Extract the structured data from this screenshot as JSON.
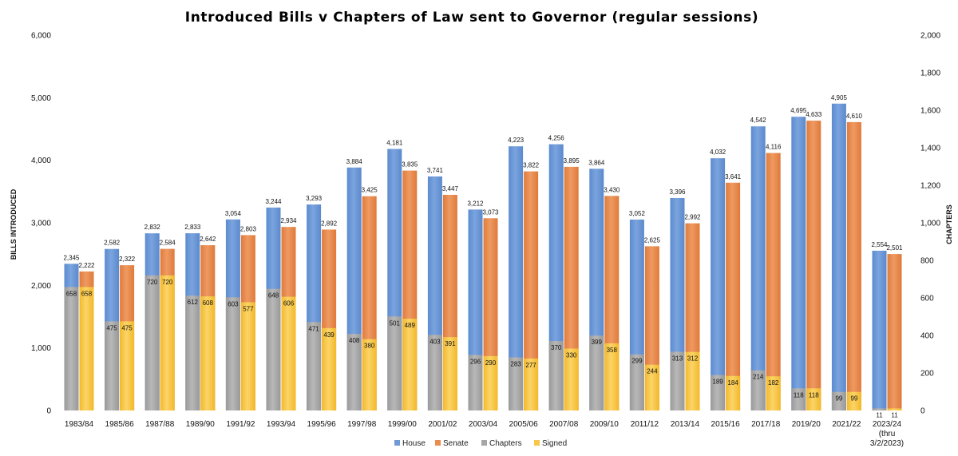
{
  "chart_data": {
    "type": "bar",
    "title": "Introduced Bills v Chapters of Law sent to Governor (regular sessions)",
    "ylabel": "BILLS INTRODUCED",
    "y2label": "CHAPTERS",
    "ylim": [
      0,
      6000
    ],
    "y2lim": [
      0,
      2000
    ],
    "yticks": [
      "0",
      "1,000",
      "2,000",
      "3,000",
      "4,000",
      "5,000",
      "6,000"
    ],
    "y2ticks": [
      "0",
      "200",
      "400",
      "600",
      "800",
      "1,000",
      "1,200",
      "1,400",
      "1,600",
      "1,800",
      "2,000"
    ],
    "grid": false,
    "legend_position": "bottom",
    "categories": [
      [
        "1983/84"
      ],
      [
        "1985/86"
      ],
      [
        "1987/88"
      ],
      [
        "1989/90"
      ],
      [
        "1991/92"
      ],
      [
        "1993/94"
      ],
      [
        "1995/96"
      ],
      [
        "1997/98"
      ],
      [
        "1999/00"
      ],
      [
        "2001/02"
      ],
      [
        "2003/04"
      ],
      [
        "2005/06"
      ],
      [
        "2007/08"
      ],
      [
        "2009/10"
      ],
      [
        "2011/12"
      ],
      [
        "2013/14"
      ],
      [
        "2015/16"
      ],
      [
        "2017/18"
      ],
      [
        "2019/20"
      ],
      [
        "2021/22"
      ],
      [
        "2023/24",
        "(thru",
        "3/2/2023)"
      ]
    ],
    "series": [
      {
        "name": "House",
        "axis": "left",
        "color": "#6f9ad6",
        "values": [
          2345,
          2582,
          2832,
          2833,
          3054,
          3244,
          3293,
          3884,
          4181,
          3741,
          3212,
          4223,
          4256,
          3864,
          3052,
          3396,
          4032,
          4542,
          4695,
          4905,
          2554
        ],
        "labels": [
          "2,345",
          "2,582",
          "2,832",
          "2,833",
          "3,054",
          "3,244",
          "3,293",
          "3,884",
          "4,181",
          "3,741",
          "3,212",
          "4,223",
          "4,256",
          "3,864",
          "3,052",
          "3,396",
          "4,032",
          "4,542",
          "4,695",
          "4,905",
          "2,554"
        ]
      },
      {
        "name": "Senate",
        "axis": "left",
        "color": "#e98c4f",
        "values": [
          2222,
          2322,
          2584,
          2642,
          2803,
          2934,
          2892,
          3425,
          3835,
          3447,
          3073,
          3822,
          3895,
          3430,
          2625,
          2992,
          3641,
          4116,
          4633,
          4610,
          2501
        ],
        "labels": [
          "2,222",
          "2,322",
          "2,584",
          "2,642",
          "2,803",
          "2,934",
          "2,892",
          "3,425",
          "3,835",
          "3,447",
          "3,073",
          "3,822",
          "3,895",
          "3,430",
          "2,625",
          "2,992",
          "3,641",
          "4,116",
          "4,633",
          "4,610",
          "2,501"
        ]
      },
      {
        "name": "Chapters",
        "axis": "right",
        "color": "#a6a6a6",
        "values": [
          658,
          475,
          720,
          612,
          603,
          648,
          471,
          408,
          501,
          403,
          296,
          283,
          370,
          399,
          299,
          313,
          189,
          214,
          118,
          99,
          11
        ],
        "labels": [
          "658",
          "475",
          "720",
          "612",
          "603",
          "648",
          "471",
          "408",
          "501",
          "403",
          "296",
          "283",
          "370",
          "399",
          "299",
          "313",
          "189",
          "214",
          "118",
          "99",
          "11"
        ]
      },
      {
        "name": "Signed",
        "axis": "right",
        "color": "#f7c64a",
        "values": [
          658,
          475,
          720,
          608,
          577,
          606,
          439,
          380,
          489,
          391,
          290,
          277,
          330,
          358,
          244,
          312,
          184,
          182,
          118,
          99,
          11
        ],
        "labels": [
          "658",
          "475",
          "720",
          "608",
          "577",
          "606",
          "439",
          "380",
          "489",
          "391",
          "290",
          "277",
          "330",
          "358",
          "244",
          "312",
          "184",
          "182",
          "118",
          "99",
          "11"
        ]
      }
    ]
  }
}
